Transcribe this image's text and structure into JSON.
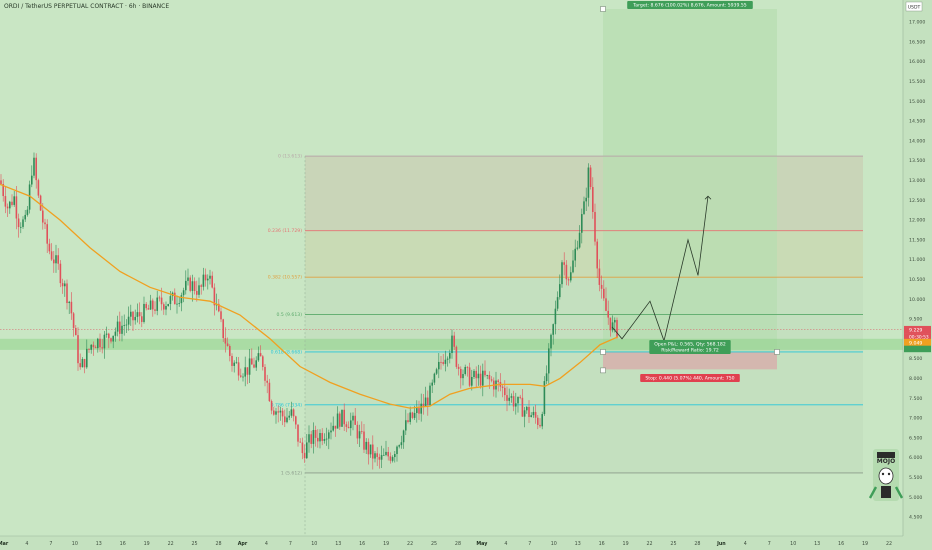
{
  "header": {
    "title": "ORDI / TetherUS PERPETUAL CONTRACT · 6h · BINANCE"
  },
  "yaxis": {
    "currency": "USDT",
    "ticks": [
      "17.000",
      "16.500",
      "16.000",
      "15.500",
      "15.000",
      "14.500",
      "14.000",
      "13.500",
      "13.000",
      "12.500",
      "12.000",
      "11.500",
      "11.000",
      "10.500",
      "10.000",
      "9.500",
      "9.000",
      "8.500",
      "8.000",
      "7.500",
      "7.000",
      "6.500",
      "6.000",
      "5.500",
      "5.000",
      "4.500"
    ],
    "price_labels": {
      "current": "9.229",
      "countdown": "00:30:53",
      "ma": "9.049"
    }
  },
  "xaxis": {
    "ticks": [
      "Mar",
      "4",
      "7",
      "10",
      "13",
      "16",
      "19",
      "22",
      "25",
      "28",
      "Apr",
      "4",
      "7",
      "10",
      "13",
      "16",
      "19",
      "22",
      "25",
      "28",
      "May",
      "4",
      "7",
      "10",
      "13",
      "16",
      "19",
      "22",
      "25",
      "28",
      "Jun",
      "4",
      "7",
      "10",
      "13",
      "16",
      "19",
      "22"
    ]
  },
  "fib_labels": [
    "0 (13.613)",
    "0.236 (11.729)",
    "0.382 (10.557)",
    "0.5 (9.613)",
    "0.618 (8.668)",
    "0.786 (7.334)",
    "1 (5.612)"
  ],
  "position": {
    "target_label": "Target: 8.676 (100.02%) 8,676, Amount: 5939.55",
    "open_label": "Open P&L: 0.565, Qty: 568.182",
    "rr_label": "Risk/Reward Ratio: 19.72",
    "stop_label": "Stop: 0.440 (5.07%) 440, Amount: 750"
  },
  "logo": {
    "text": "MOJO"
  },
  "colors": {
    "background": "#c9e6c4",
    "candle_up": "#2e8b57",
    "candle_down": "#e0505a",
    "ma_line": "#f0a020",
    "fib_red": "#e57373",
    "fib_orange": "#e0a040",
    "fib_green": "#5aa96a",
    "fib_teal": "#26c6da",
    "fib_gray": "#8a9a8a",
    "target_zone": "#b7ddb2",
    "stop_zone": "#d6b3ad",
    "projection": "#2a3a2a"
  },
  "chart_data": {
    "type": "candlestick",
    "timeframe": "6h",
    "ylim": [
      4.3,
      17.3
    ],
    "indicator": "moving average (orange)",
    "fib_retracement": [
      {
        "ratio": 0,
        "price": 13.613
      },
      {
        "ratio": 0.236,
        "price": 11.729
      },
      {
        "ratio": 0.382,
        "price": 10.557
      },
      {
        "ratio": 0.5,
        "price": 9.613
      },
      {
        "ratio": 0.618,
        "price": 8.668
      },
      {
        "ratio": 0.786,
        "price": 7.334
      },
      {
        "ratio": 1,
        "price": 5.612
      }
    ],
    "long_position": {
      "entry": 8.668,
      "target": 17.344,
      "stop": 8.228
    },
    "projected_path": [
      9.0,
      9.95,
      8.95,
      11.5,
      10.6,
      12.6
    ]
  }
}
